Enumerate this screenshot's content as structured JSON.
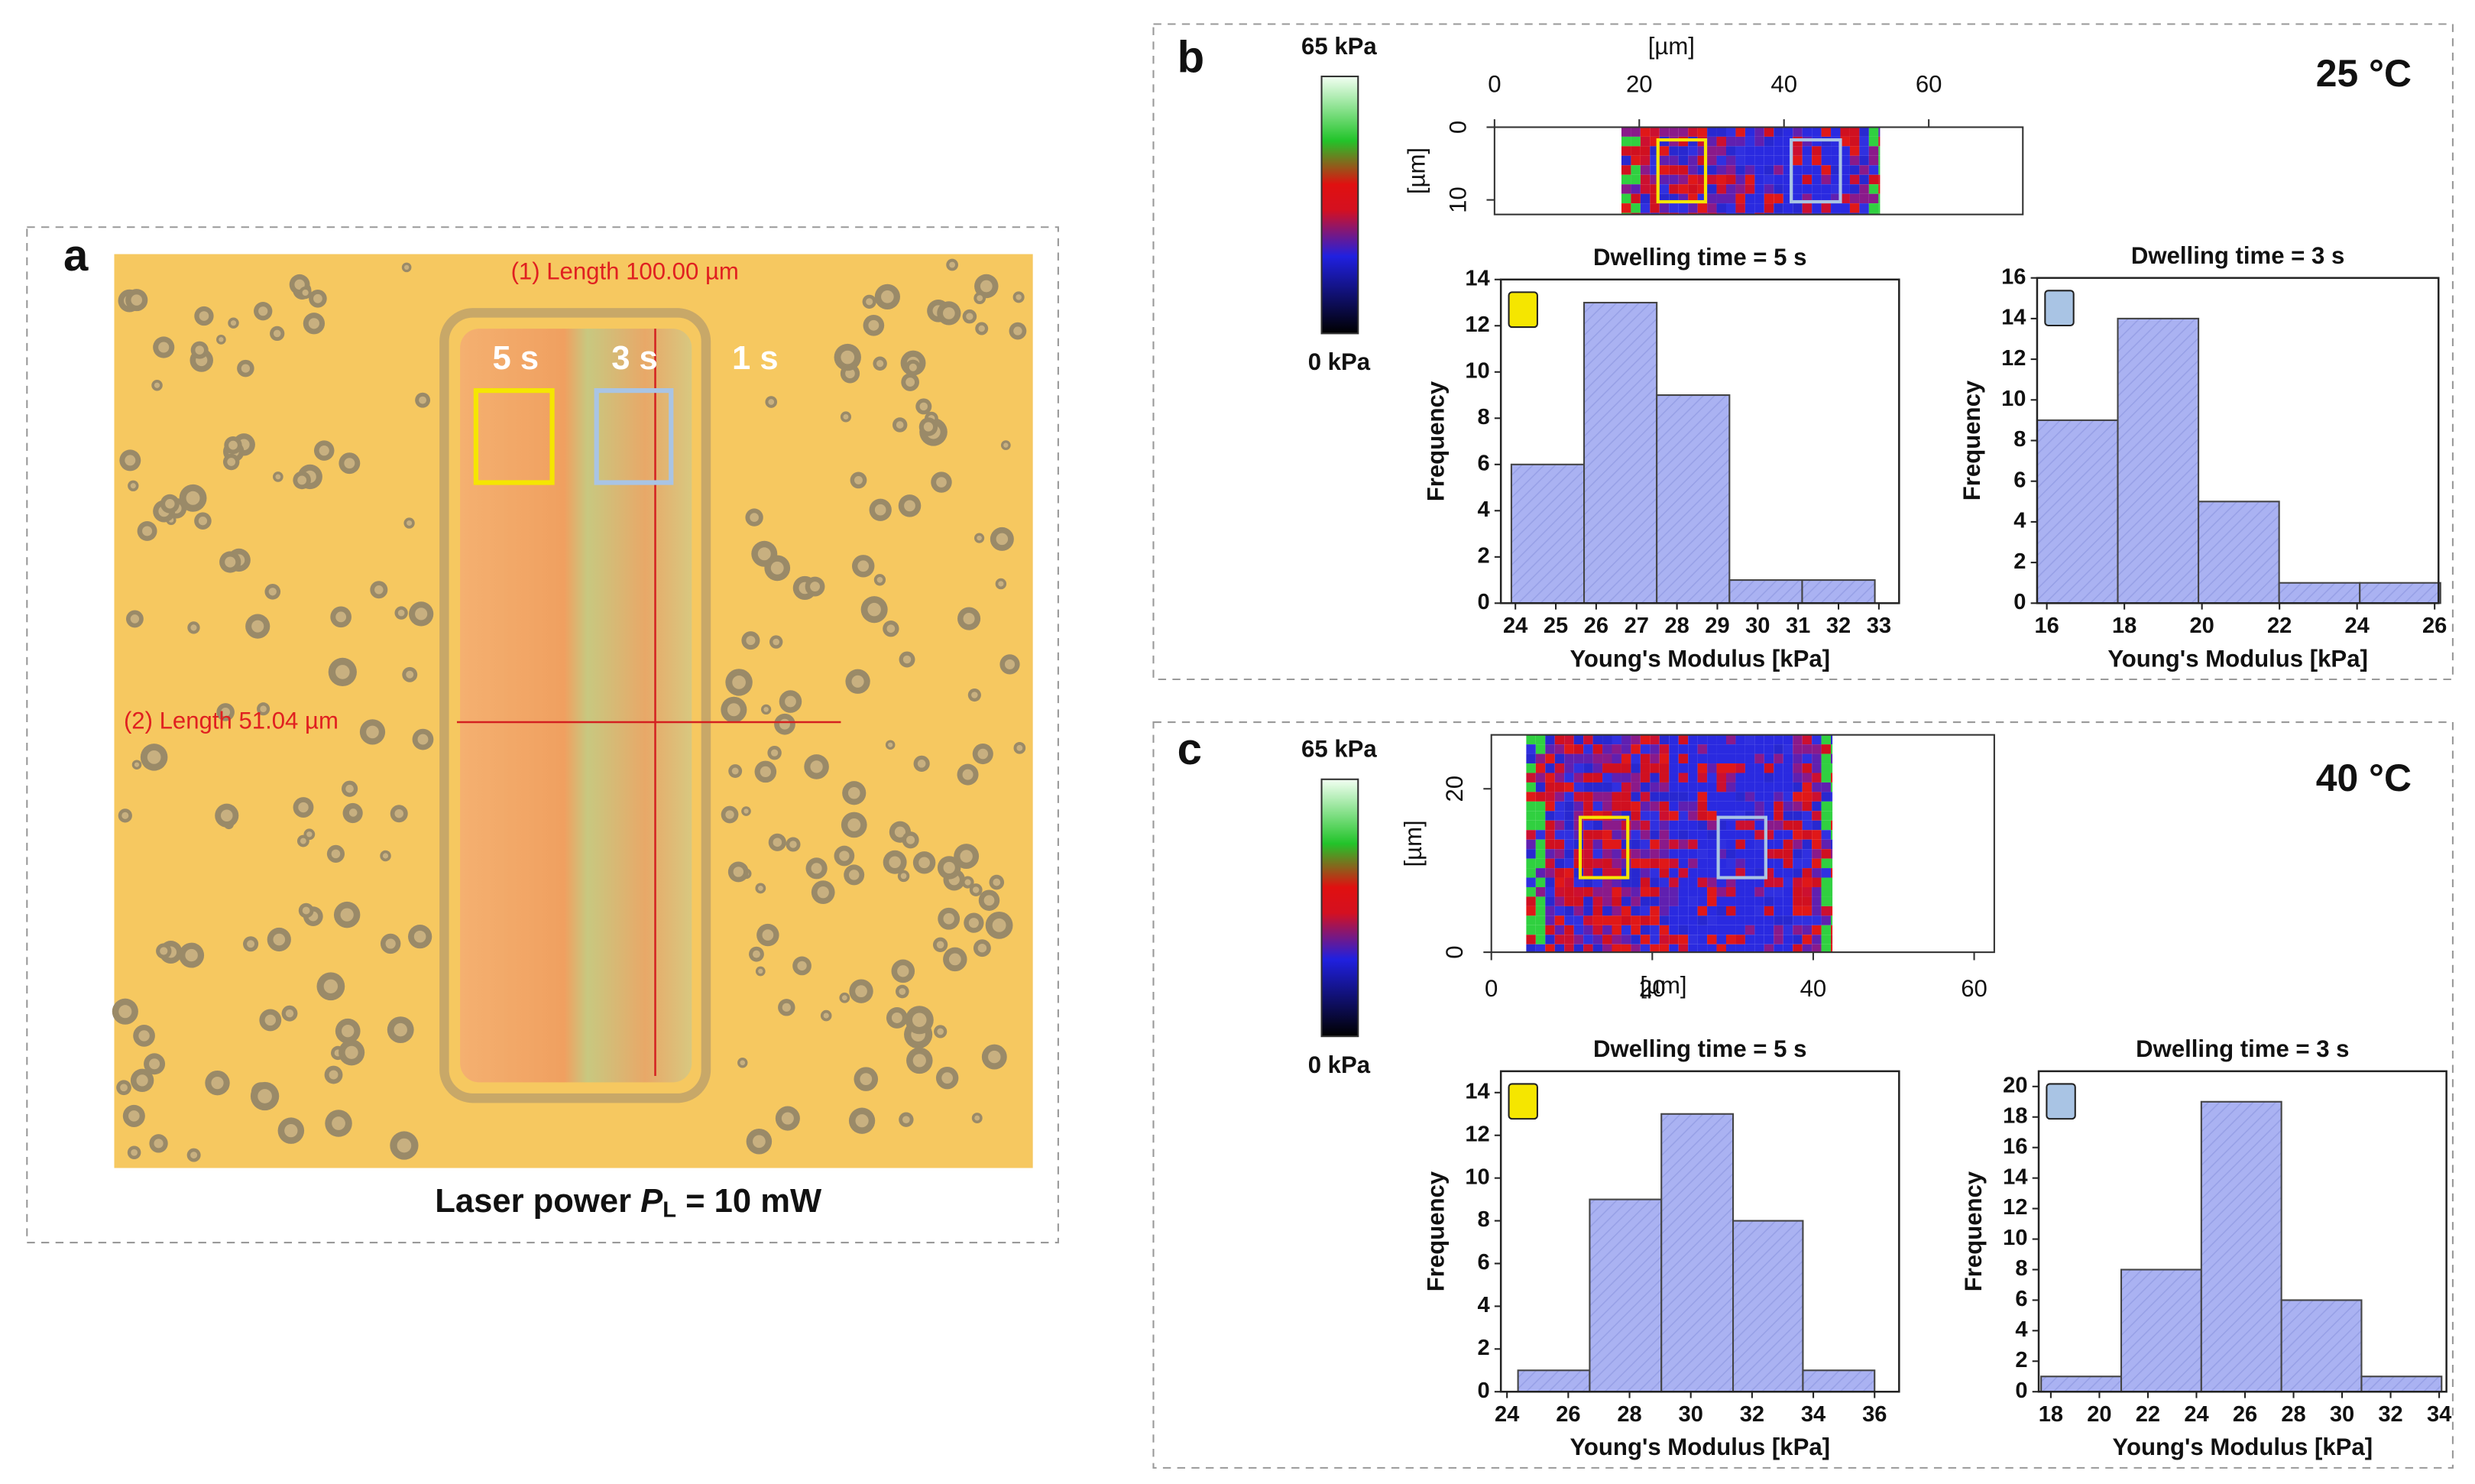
{
  "panels": {
    "a": {
      "label": "a",
      "annotations": [
        "(1)  Length 100.00 µm",
        "(2)  Length 51.04 µm"
      ],
      "dwell_labels": [
        "5 s",
        "3 s",
        "1 s"
      ],
      "caption": {
        "pre": "Laser power ",
        "symbol": "P",
        "subscript": "L",
        "post": " = 10 mW"
      }
    },
    "b": {
      "label": "b",
      "temperature": "25 °C",
      "colorbar": {
        "max_label": "65 kPa",
        "min_label": "0 kPa"
      }
    },
    "c": {
      "label": "c",
      "temperature": "40 °C",
      "colorbar": {
        "max_label": "65 kPa",
        "min_label": "0 kPa"
      }
    }
  },
  "chart_data": [
    {
      "type": "heatmap",
      "xlabel": "[µm]",
      "ylabel": "[µm]",
      "xlim": [
        0,
        73
      ],
      "ylim": [
        0,
        12
      ],
      "xticks": [
        0,
        20,
        40,
        60
      ],
      "yticks": [
        0,
        10
      ],
      "x_axis_position": "top",
      "y_inverted": true
    },
    {
      "type": "histogram",
      "title": "Dwelling time = 5 s",
      "xlabel": "Young's Modulus [kPa]",
      "ylabel": "Frequency",
      "bins": [
        23.9,
        25.7,
        27.5,
        29.3,
        31.1,
        32.9
      ],
      "values": [
        6,
        13,
        9,
        1,
        1
      ],
      "color": "#aab2f2",
      "swatch_color": "#f5e600",
      "xlim": [
        23.64,
        33.5
      ],
      "ylim": [
        0,
        14
      ],
      "xticks": [
        24,
        25,
        26,
        27,
        28,
        29,
        30,
        31,
        32,
        33
      ],
      "yticks": [
        0,
        2,
        4,
        6,
        8,
        10,
        12,
        14
      ]
    },
    {
      "type": "histogram",
      "title": "Dwelling time = 3 s",
      "xlabel": "Young's Modulus [kPa]",
      "ylabel": "Frequency",
      "bins": [
        15.75,
        17.83,
        19.91,
        21.99,
        24.07,
        26.15
      ],
      "values": [
        9,
        14,
        5,
        1,
        1
      ],
      "color": "#aab2f2",
      "swatch_color": "#a9c4e4",
      "xlim": [
        15.75,
        26.1
      ],
      "ylim": [
        0,
        16
      ],
      "xticks": [
        16,
        18,
        20,
        22,
        24,
        26
      ],
      "yticks": [
        0,
        2,
        4,
        6,
        8,
        10,
        12,
        14,
        16
      ]
    },
    {
      "type": "heatmap",
      "xlabel": "[µm]",
      "ylabel": "[µm]",
      "xlim": [
        0,
        62.5
      ],
      "ylim": [
        0,
        26.6
      ],
      "xticks": [
        0,
        20,
        40,
        60
      ],
      "yticks": [
        0,
        20
      ],
      "x_axis_position": "bottom",
      "y_inverted": false
    },
    {
      "type": "histogram",
      "title": "Dwelling time = 5 s",
      "xlabel": "Young's Modulus [kPa]",
      "ylabel": "Frequency",
      "bins": [
        24.36,
        26.7,
        29.04,
        31.38,
        33.66,
        36
      ],
      "values": [
        1,
        9,
        13,
        8,
        1
      ],
      "color": "#aab2f2",
      "swatch_color": "#f5e600",
      "xlim": [
        23.8,
        36.8
      ],
      "ylim": [
        0,
        15
      ],
      "xticks": [
        24,
        26,
        28,
        30,
        32,
        34,
        36
      ],
      "yticks": [
        0,
        2,
        4,
        6,
        8,
        10,
        12,
        14
      ]
    },
    {
      "type": "histogram",
      "title": "Dwelling time = 3 s",
      "xlabel": "Young's Modulus [kPa]",
      "ylabel": "Frequency",
      "bins": [
        17.6,
        20.9,
        24.2,
        27.5,
        30.8,
        34.1
      ],
      "values": [
        1,
        8,
        19,
        6,
        1
      ],
      "color": "#aab2f2",
      "swatch_color": "#a9c4e4",
      "xlim": [
        17.5,
        34.3
      ],
      "ylim": [
        0,
        21
      ],
      "xticks": [
        18,
        20,
        22,
        24,
        26,
        28,
        30,
        32,
        34
      ],
      "yticks": [
        0,
        2,
        4,
        6,
        8,
        10,
        12,
        14,
        16,
        18,
        20
      ]
    }
  ]
}
